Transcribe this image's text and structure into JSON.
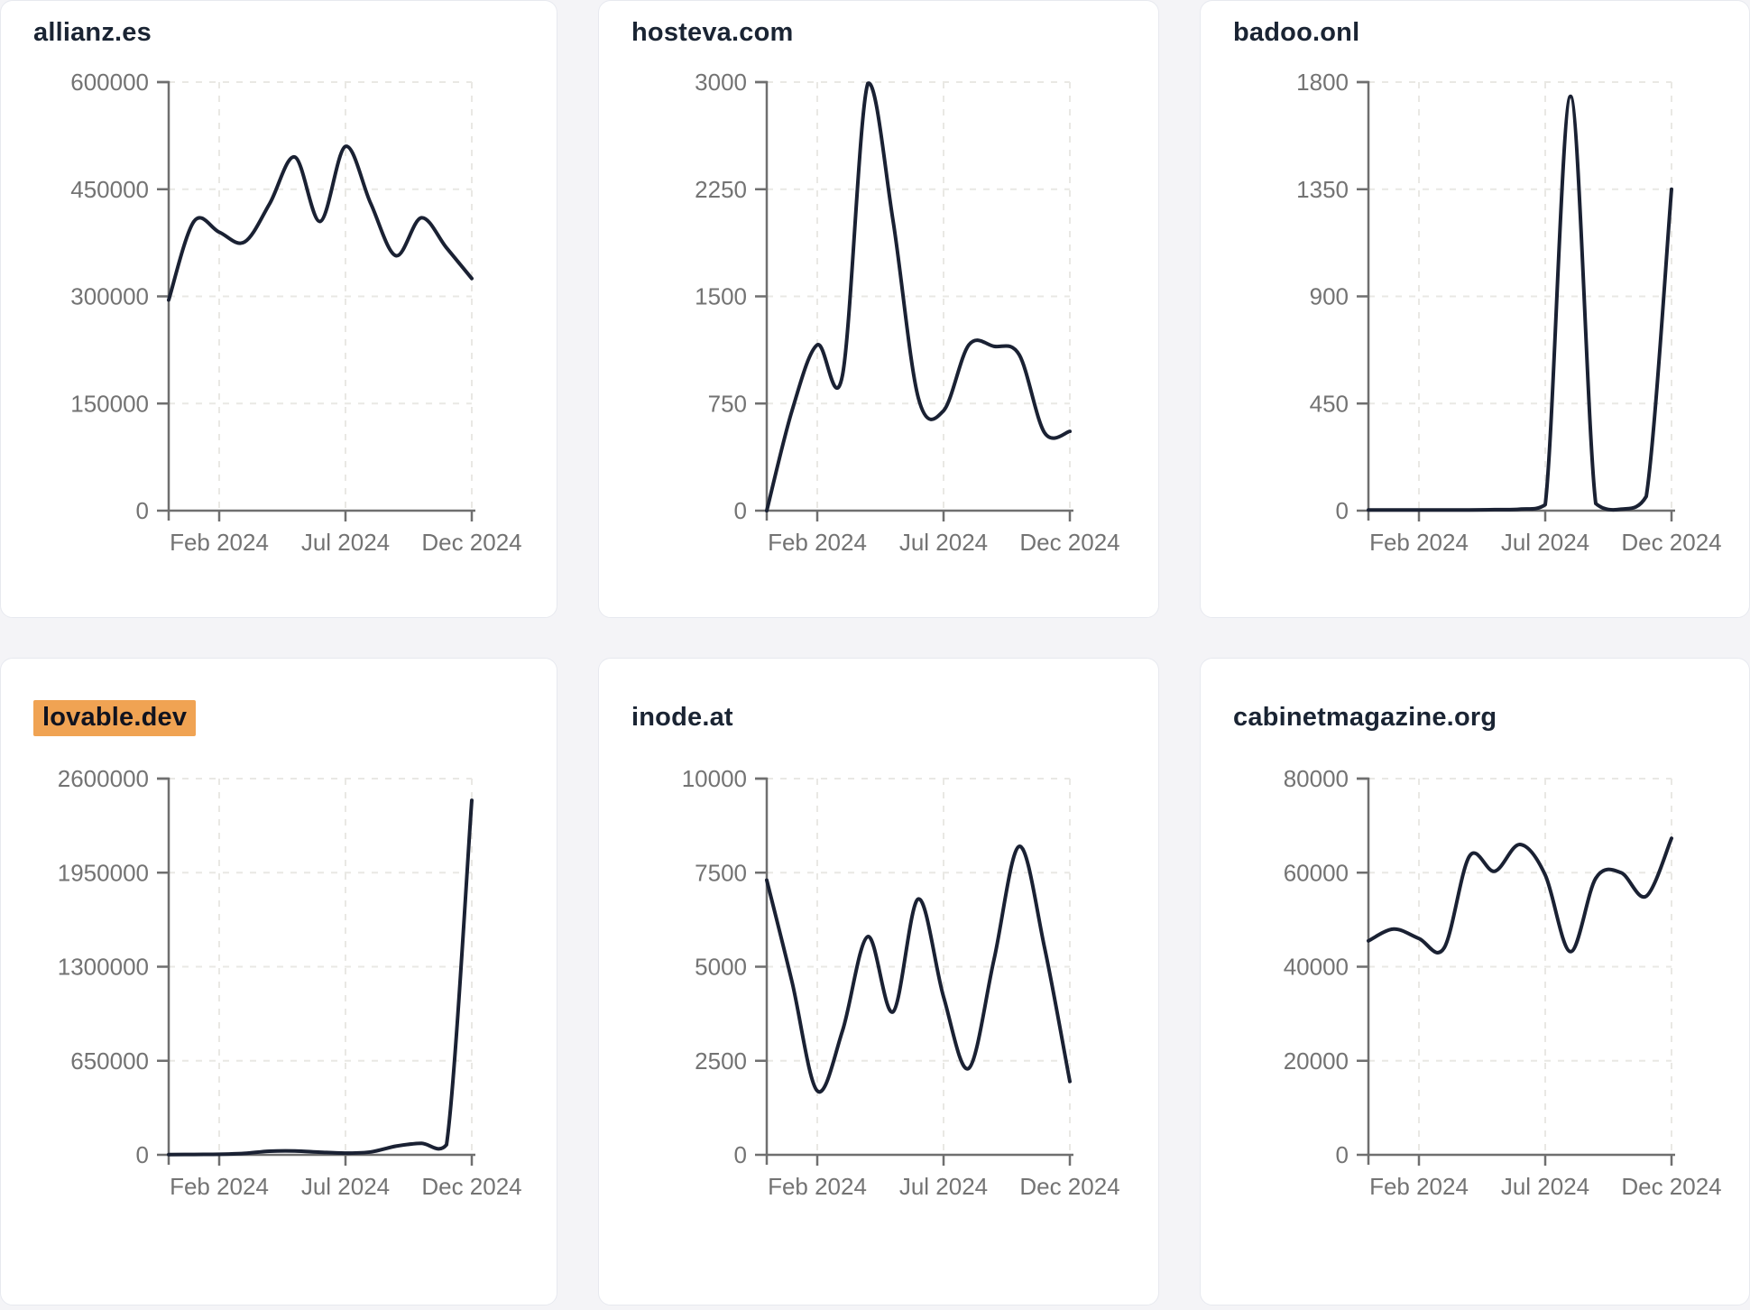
{
  "x_axis": {
    "tick_labels": [
      "Feb 2024",
      "Jul 2024",
      "Dec 2024"
    ],
    "tick_month_indices": [
      2,
      7,
      12
    ]
  },
  "months": [
    "Dec 2023",
    "Jan 2024",
    "Feb 2024",
    "Mar 2024",
    "Apr 2024",
    "May 2024",
    "Jun 2024",
    "Jul 2024",
    "Aug 2024",
    "Sep 2024",
    "Oct 2024",
    "Nov 2024",
    "Dec 2024"
  ],
  "chart_data": [
    {
      "type": "line",
      "title": "allianz.es",
      "highlighted": false,
      "x": [
        "Dec 2023",
        "Jan 2024",
        "Feb 2024",
        "Mar 2024",
        "Apr 2024",
        "May 2024",
        "Jun 2024",
        "Jul 2024",
        "Aug 2024",
        "Sep 2024",
        "Oct 2024",
        "Nov 2024",
        "Dec 2024"
      ],
      "values": [
        295000,
        405000,
        390000,
        376000,
        430000,
        495000,
        405000,
        510000,
        430000,
        357000,
        410000,
        368000,
        325000
      ],
      "y_ticks": [
        0,
        150000,
        300000,
        450000,
        600000
      ],
      "ylim": [
        0,
        600000
      ],
      "grid": "dashed"
    },
    {
      "type": "line",
      "title": "hosteva.com",
      "highlighted": false,
      "x": [
        "Dec 2023",
        "Jan 2024",
        "Feb 2024",
        "Mar 2024",
        "Apr 2024",
        "May 2024",
        "Jun 2024",
        "Jul 2024",
        "Aug 2024",
        "Sep 2024",
        "Oct 2024",
        "Nov 2024",
        "Dec 2024"
      ],
      "values": [
        0,
        700,
        1160,
        950,
        2990,
        2030,
        790,
        700,
        1160,
        1150,
        1090,
        545,
        555
      ],
      "y_ticks": [
        0,
        750,
        1500,
        2250,
        3000
      ],
      "ylim": [
        0,
        3000
      ],
      "grid": "dashed"
    },
    {
      "type": "line",
      "title": "badoo.onl",
      "highlighted": false,
      "x": [
        "Dec 2023",
        "Jan 2024",
        "Feb 2024",
        "Mar 2024",
        "Apr 2024",
        "May 2024",
        "Jun 2024",
        "Jul 2024",
        "Aug 2024",
        "Sep 2024",
        "Oct 2024",
        "Nov 2024",
        "Dec 2024"
      ],
      "values": [
        3,
        3,
        3,
        3,
        3,
        4,
        6,
        25,
        1740,
        30,
        6,
        60,
        1350
      ],
      "y_ticks": [
        0,
        450,
        900,
        1350,
        1800
      ],
      "ylim": [
        0,
        1800
      ],
      "grid": "dashed"
    },
    {
      "type": "line",
      "title": "lovable.dev",
      "highlighted": true,
      "x": [
        "Dec 2023",
        "Jan 2024",
        "Feb 2024",
        "Mar 2024",
        "Apr 2024",
        "May 2024",
        "Jun 2024",
        "Jul 2024",
        "Aug 2024",
        "Sep 2024",
        "Oct 2024",
        "Nov 2024",
        "Dec 2024"
      ],
      "values": [
        2000,
        2500,
        4000,
        10000,
        25000,
        27000,
        18000,
        12000,
        20000,
        60000,
        80000,
        70000,
        2450000
      ],
      "y_ticks": [
        0,
        650000,
        1300000,
        1950000,
        2600000
      ],
      "ylim": [
        0,
        2600000
      ],
      "grid": "dashed"
    },
    {
      "type": "line",
      "title": "inode.at",
      "highlighted": false,
      "x": [
        "Dec 2023",
        "Jan 2024",
        "Feb 2024",
        "Mar 2024",
        "Apr 2024",
        "May 2024",
        "Jun 2024",
        "Jul 2024",
        "Aug 2024",
        "Sep 2024",
        "Oct 2024",
        "Nov 2024",
        "Dec 2024"
      ],
      "values": [
        7300,
        4600,
        1700,
        3300,
        5800,
        3800,
        6800,
        4200,
        2300,
        5200,
        8200,
        5500,
        1950
      ],
      "y_ticks": [
        0,
        2500,
        5000,
        7500,
        10000
      ],
      "ylim": [
        0,
        10000
      ],
      "grid": "dashed"
    },
    {
      "type": "line",
      "title": "cabinetmagazine.org",
      "highlighted": false,
      "x": [
        "Dec 2023",
        "Jan 2024",
        "Feb 2024",
        "Mar 2024",
        "Apr 2024",
        "May 2024",
        "Jun 2024",
        "Jul 2024",
        "Aug 2024",
        "Sep 2024",
        "Oct 2024",
        "Nov 2024",
        "Dec 2024"
      ],
      "values": [
        45500,
        48000,
        46000,
        44000,
        63500,
        60300,
        66000,
        59500,
        43200,
        58800,
        60000,
        55000,
        67300
      ],
      "y_ticks": [
        0,
        20000,
        40000,
        60000,
        80000
      ],
      "ylim": [
        0,
        80000
      ],
      "grid": "dashed"
    }
  ],
  "colors": {
    "line": "#1a2133",
    "axis": "#6f6f6f",
    "tick_label": "#737373",
    "grid": "#e9e8e4",
    "title": "#1a2433",
    "highlight": "#f0a353",
    "card_background": "#ffffff",
    "card_border": "#e7e9ef",
    "page_background": "#f4f4f7"
  }
}
